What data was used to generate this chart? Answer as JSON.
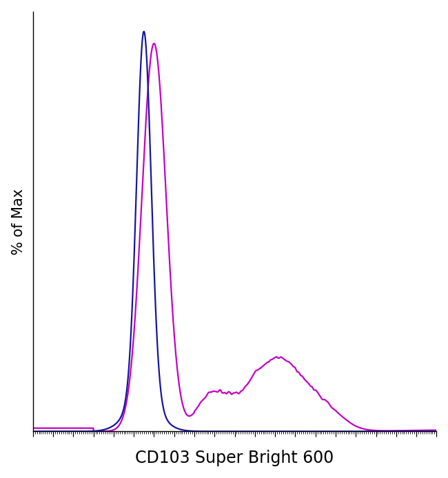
{
  "xlabel": "CD103 Super Bright 600",
  "ylabel": "% of Max",
  "xlabel_fontsize": 17,
  "ylabel_fontsize": 15,
  "background_color": "#ffffff",
  "blue_color": "#1515a0",
  "magenta_color": "#c400c4",
  "line_width": 1.6,
  "xlim": [
    0,
    1000
  ],
  "ylim": [
    0,
    1.05
  ],
  "spine_color": "#000000"
}
